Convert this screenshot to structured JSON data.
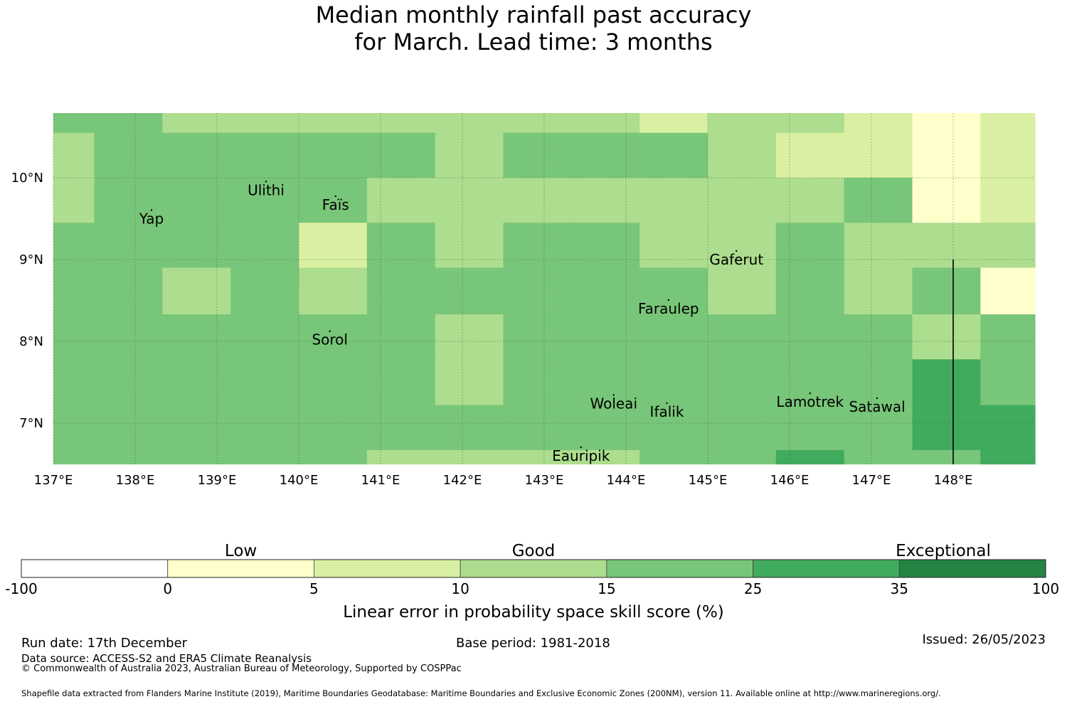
{
  "title": {
    "line1": "Median monthly rainfall past accuracy",
    "line2": "for March. Lead time: 3 months"
  },
  "map": {
    "lon_range": [
      137.0,
      149.0
    ],
    "lat_range": [
      6.5,
      10.8
    ],
    "lon_ticks": [
      {
        "value": 137,
        "label": "137°E"
      },
      {
        "value": 138,
        "label": "138°E"
      },
      {
        "value": 139,
        "label": "139°E"
      },
      {
        "value": 140,
        "label": "140°E"
      },
      {
        "value": 141,
        "label": "141°E"
      },
      {
        "value": 142,
        "label": "142°E"
      },
      {
        "value": 143,
        "label": "143°E"
      },
      {
        "value": 144,
        "label": "144°E"
      },
      {
        "value": 145,
        "label": "145°E"
      },
      {
        "value": 146,
        "label": "146°E"
      },
      {
        "value": 147,
        "label": "147°E"
      },
      {
        "value": 148,
        "label": "148°E"
      }
    ],
    "lat_ticks": [
      {
        "value": 10,
        "label": "10°N"
      },
      {
        "value": 9,
        "label": "9°N"
      },
      {
        "value": 8,
        "label": "8°N"
      },
      {
        "value": 7,
        "label": "7°N"
      }
    ],
    "grid": {
      "lon_edges": [
        137.0,
        137.5,
        138.333,
        139.167,
        140.0,
        140.833,
        141.667,
        142.5,
        143.333,
        144.167,
        145.0,
        145.833,
        146.667,
        147.5,
        148.333,
        149.0
      ],
      "lat_edges": [
        10.8,
        10.55,
        10.0,
        9.45,
        8.9,
        8.33,
        7.78,
        7.22,
        6.67,
        6.5
      ],
      "class_rows": [
        [
          4,
          4,
          3,
          3,
          3,
          3,
          3,
          3,
          3,
          2,
          3,
          3,
          2,
          1,
          2
        ],
        [
          3,
          4,
          4,
          4,
          4,
          4,
          3,
          4,
          4,
          4,
          3,
          2,
          2,
          1,
          2
        ],
        [
          3,
          4,
          4,
          4,
          4,
          3,
          3,
          3,
          3,
          3,
          3,
          3,
          4,
          1,
          2
        ],
        [
          4,
          4,
          4,
          4,
          2,
          4,
          3,
          4,
          4,
          3,
          3,
          4,
          3,
          3,
          3
        ],
        [
          4,
          4,
          3,
          4,
          3,
          4,
          4,
          4,
          4,
          4,
          3,
          4,
          3,
          4,
          1
        ],
        [
          4,
          4,
          4,
          4,
          4,
          4,
          3,
          4,
          4,
          4,
          4,
          4,
          4,
          3,
          4
        ],
        [
          4,
          4,
          4,
          4,
          4,
          4,
          3,
          4,
          4,
          4,
          4,
          4,
          4,
          5,
          4
        ],
        [
          4,
          4,
          4,
          4,
          4,
          4,
          4,
          4,
          4,
          4,
          4,
          4,
          4,
          5,
          5
        ],
        [
          4,
          4,
          4,
          4,
          4,
          3,
          3,
          3,
          3,
          4,
          4,
          5,
          4,
          4,
          5
        ]
      ]
    },
    "islands": [
      {
        "name": "Yap",
        "lon": 138.2,
        "lat": 9.5
      },
      {
        "name": "Ulithi",
        "lon": 139.6,
        "lat": 9.85
      },
      {
        "name": "Faïs",
        "lon": 140.45,
        "lat": 9.67
      },
      {
        "name": "Gaferut",
        "lon": 145.35,
        "lat": 9.0
      },
      {
        "name": "Faraulep",
        "lon": 144.52,
        "lat": 8.4
      },
      {
        "name": "Sorol",
        "lon": 140.38,
        "lat": 8.02
      },
      {
        "name": "Woleai",
        "lon": 143.85,
        "lat": 7.24
      },
      {
        "name": "Ifalik",
        "lon": 144.5,
        "lat": 7.14
      },
      {
        "name": "Lamotrek",
        "lon": 146.25,
        "lat": 7.26
      },
      {
        "name": "Satawal",
        "lon": 147.07,
        "lat": 7.2
      },
      {
        "name": "Eauripik",
        "lon": 143.45,
        "lat": 6.6
      }
    ],
    "boundary_lon": 148.0,
    "boundary_lat_top": 9.0
  },
  "legend": {
    "boundaries": [
      "-100",
      "0",
      "5",
      "10",
      "15",
      "25",
      "35",
      "100"
    ],
    "colors": [
      "#ffffff",
      "#ffffcc",
      "#d9f0a3",
      "#addd8e",
      "#78c679",
      "#41ab5d",
      "#238443"
    ],
    "category_labels": [
      "Low",
      "Good",
      "Exceptional"
    ],
    "axis_label": "Linear error in probability space skill score (%)"
  },
  "footer": {
    "run_date": "Run date: 17th December",
    "base_period": "Base period: 1981-2018",
    "issued": "Issued: 26/05/2023",
    "data_source": "Data source: ACCESS-S2 and ERA5 Climate Reanalysis",
    "copyright": "© Commonwealth of Australia 2023, Australian Bureau of Meteorology, Supported by COSPPac",
    "shapefile": "Shapefile data extracted from Flanders Marine Institute (2019), Maritime Boundaries Geodatabase: Maritime Boundaries and Exclusive Economic Zones (200NM), version 11. Available online at http://www.marineregions.org/."
  }
}
